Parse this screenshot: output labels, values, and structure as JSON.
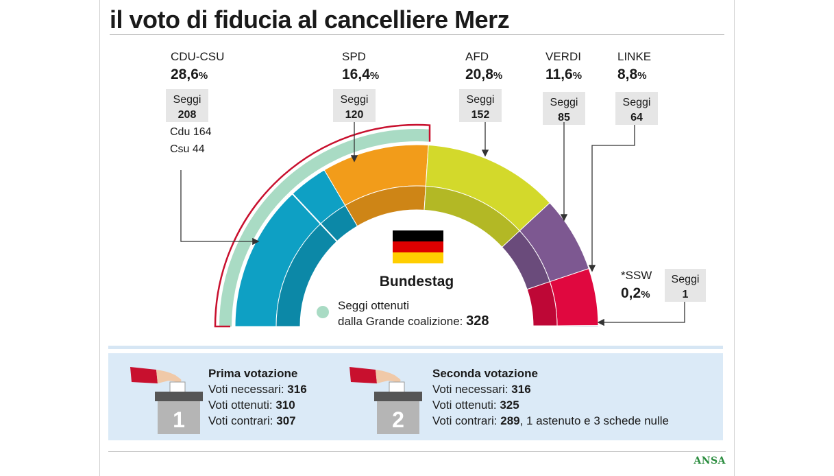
{
  "title": "il voto di fiducia al cancelliere Merz",
  "chart_data": {
    "type": "pie",
    "subtype": "parliament-semicircle",
    "center_label": "Bundestag",
    "parties": [
      {
        "name": "CDU-CSU",
        "percent": "28,6",
        "seats_label": "Seggi",
        "seats": 208,
        "sub": [
          "Cdu 164",
          "Csu 44"
        ],
        "color": "#0ea0c4"
      },
      {
        "name": "SPD",
        "percent": "16,4",
        "seats_label": "Seggi",
        "seats": 120,
        "color": "#f29c1a"
      },
      {
        "name": "AFD",
        "percent": "20,8",
        "seats_label": "Seggi",
        "seats": 152,
        "color": "#d3d92b"
      },
      {
        "name": "VERDI",
        "percent": "11,6",
        "seats_label": "Seggi",
        "seats": 85,
        "color": "#7d5891"
      },
      {
        "name": "LINKE",
        "percent": "8,8",
        "seats_label": "Seggi",
        "seats": 64,
        "color": "#e0083f"
      },
      {
        "name": "*SSW",
        "percent": "0,2",
        "seats_label": "Seggi",
        "seats": 1,
        "color": "#1c3a78"
      }
    ],
    "percent_unit": "%",
    "coalition": {
      "label_line1": "Seggi ottenuti",
      "label_line2": "dalla Grande coalizione:",
      "value": "328",
      "color": "#a9dbc4",
      "outline_color": "#c8102e"
    },
    "flag_colors": [
      "#000000",
      "#dd0000",
      "#ffce00"
    ]
  },
  "votes": [
    {
      "number": "1",
      "title": "Prima votazione",
      "needed_label": "Voti necessari:",
      "needed": "316",
      "obtained_label": "Voti ottenuti:",
      "obtained": "310",
      "against_label": "Voti contrari:",
      "against": "307",
      "against_extra": ""
    },
    {
      "number": "2",
      "title": "Seconda votazione",
      "needed_label": "Voti necessari:",
      "needed": "316",
      "obtained_label": "Voti ottenuti:",
      "obtained": "325",
      "against_label": "Voti contrari:",
      "against": "289",
      "against_extra": ", 1 astenuto e 3 schede nulle"
    }
  ],
  "source": "ANSA"
}
